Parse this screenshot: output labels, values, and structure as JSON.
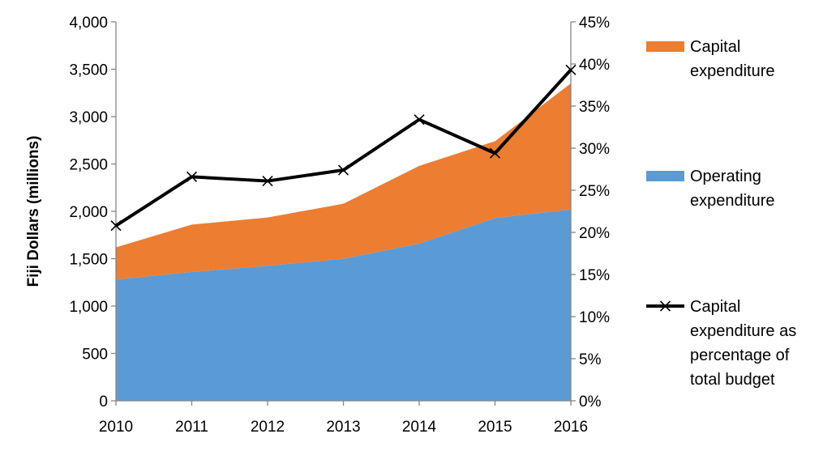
{
  "chart_data": {
    "type": "area",
    "title": "",
    "xlabel": "",
    "ylabel": "Fiji Dollars (millions)",
    "y2label": "",
    "categories": [
      "2010",
      "2011",
      "2012",
      "2013",
      "2014",
      "2015",
      "2016"
    ],
    "ylim": [
      0,
      4000
    ],
    "y_ticks": [
      0,
      500,
      1000,
      1500,
      2000,
      2500,
      3000,
      3500,
      4000
    ],
    "y_tick_labels": [
      "0",
      "500",
      "1,000",
      "1,500",
      "2,000",
      "2,500",
      "3,000",
      "3,500",
      "4,000"
    ],
    "y2lim": [
      0,
      45
    ],
    "y2_ticks": [
      0,
      5,
      10,
      15,
      20,
      25,
      30,
      35,
      40,
      45
    ],
    "y2_tick_labels": [
      "0%",
      "5%",
      "10%",
      "15%",
      "20%",
      "25%",
      "30%",
      "35%",
      "40%",
      "45%"
    ],
    "grid": false,
    "legend_position": "right",
    "series": [
      {
        "name": "Operating expenditure",
        "name_lines": [
          "Operating",
          "expenditure"
        ],
        "type": "stacked-area",
        "axis": "left",
        "color": "#5b9bd5",
        "values": [
          1280,
          1360,
          1425,
          1500,
          1660,
          1930,
          2020
        ]
      },
      {
        "name": "Capital expenditure",
        "name_lines": [
          "Capital",
          "expenditure"
        ],
        "type": "stacked-area",
        "axis": "left",
        "color": "#ed7d31",
        "values": [
          340,
          500,
          510,
          580,
          820,
          810,
          1330
        ]
      },
      {
        "name": "Capital expenditure as percentage of total budget",
        "name_lines": [
          "Capital",
          "expenditure as",
          "percentage of",
          "total budget"
        ],
        "type": "line",
        "axis": "right",
        "color": "#000000",
        "marker": "x",
        "values": [
          20.8,
          26.6,
          26.1,
          27.4,
          33.4,
          29.4,
          39.3
        ]
      }
    ]
  }
}
